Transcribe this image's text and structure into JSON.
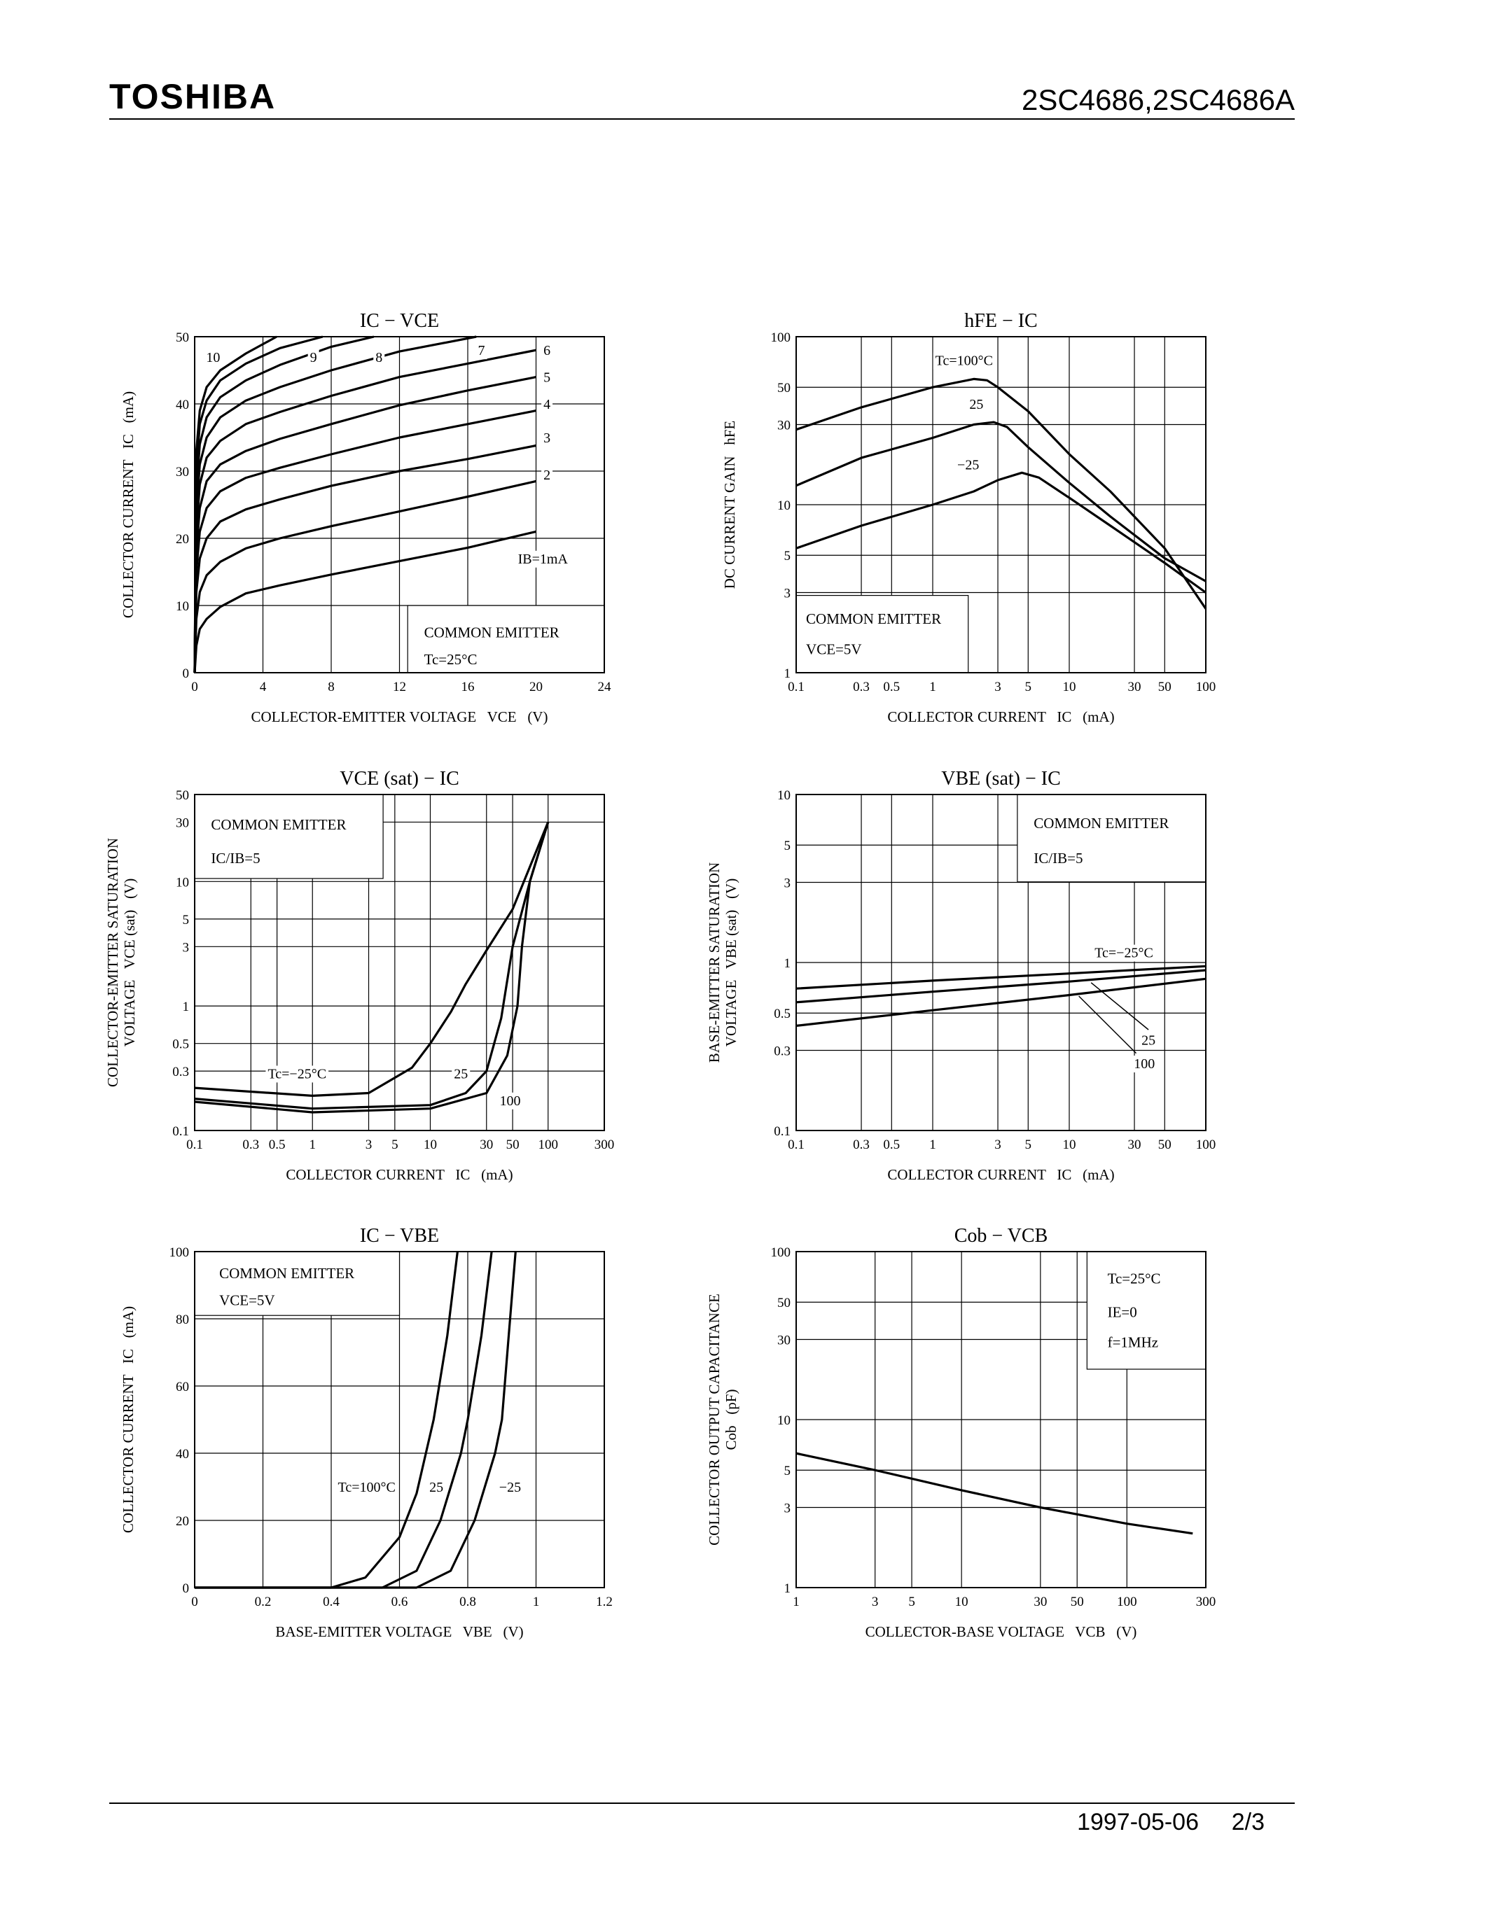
{
  "header": {
    "brand": "TOSHIBA",
    "part_number": "2SC4686,2SC4686A"
  },
  "chart_data": [
    {
      "type": "line",
      "title": "IC − VCE",
      "x_label": "COLLECTOR-EMITTER VOLTAGE   VCE   (V)",
      "y_label": "COLLECTOR CURRENT   IC   (mA)",
      "xscale": "linear",
      "yscale": "linear",
      "xlim": [
        0,
        24
      ],
      "xticks": [
        0,
        4,
        8,
        12,
        16,
        20,
        24
      ],
      "ylim": [
        0,
        50
      ],
      "yticks": [
        0,
        10,
        20,
        30,
        40,
        50
      ],
      "grid": true,
      "color": "#000000",
      "annotations": [
        "COMMON EMITTER",
        "Tc=25°C"
      ],
      "series": [
        {
          "name": "10",
          "x": [
            0,
            0.1,
            0.3,
            0.7,
            1.5,
            3,
            4.8
          ],
          "values": [
            0,
            33,
            39,
            42.5,
            45,
            47.5,
            50
          ]
        },
        {
          "name": "9",
          "x": [
            0,
            0.1,
            0.3,
            0.7,
            1.5,
            3,
            5,
            7.5
          ],
          "values": [
            0,
            30,
            37,
            40.5,
            43.5,
            46,
            48.3,
            50
          ]
        },
        {
          "name": "8",
          "x": [
            0,
            0.1,
            0.3,
            0.7,
            1.5,
            3,
            5,
            8,
            10.5
          ],
          "values": [
            0,
            27,
            34,
            38,
            41,
            43.5,
            45.8,
            48.5,
            50
          ]
        },
        {
          "name": "7",
          "x": [
            0,
            0.1,
            0.3,
            0.7,
            1.5,
            3,
            5,
            8,
            12,
            16.5
          ],
          "values": [
            0,
            24,
            31,
            35,
            38,
            40.5,
            42.5,
            45,
            47.8,
            50
          ]
        },
        {
          "name": "6",
          "x": [
            0,
            0.1,
            0.3,
            0.7,
            1.5,
            3,
            5,
            8,
            12,
            16,
            20
          ],
          "values": [
            0,
            21,
            28,
            32,
            34.5,
            37,
            38.8,
            41.2,
            44,
            46,
            48
          ]
        },
        {
          "name": "5",
          "x": [
            0,
            0.1,
            0.3,
            0.7,
            1.5,
            3,
            5,
            8,
            12,
            16,
            20
          ],
          "values": [
            0,
            18,
            24.5,
            28.5,
            31,
            33,
            34.8,
            37,
            39.8,
            42,
            44
          ]
        },
        {
          "name": "4",
          "x": [
            0,
            0.1,
            0.3,
            0.7,
            1.5,
            3,
            5,
            8,
            12,
            16,
            20
          ],
          "values": [
            0,
            15,
            21,
            24.5,
            27,
            29,
            30.5,
            32.5,
            35,
            37,
            39
          ]
        },
        {
          "name": "3",
          "x": [
            0,
            0.1,
            0.3,
            0.7,
            1.5,
            3,
            5,
            8,
            12,
            16,
            20
          ],
          "values": [
            0,
            12,
            17,
            20,
            22.5,
            24.3,
            25.8,
            27.8,
            30,
            31.8,
            33.8
          ]
        },
        {
          "name": "2",
          "x": [
            0,
            0.1,
            0.3,
            0.7,
            1.5,
            3,
            5,
            8,
            12,
            16,
            20
          ],
          "values": [
            0,
            8,
            12,
            14.5,
            16.5,
            18.5,
            20,
            21.8,
            24,
            26.2,
            28.5
          ]
        },
        {
          "name": "IB=1mA",
          "x": [
            0,
            0.1,
            0.3,
            0.7,
            1.5,
            3,
            5,
            8,
            12,
            16,
            20
          ],
          "values": [
            0,
            4,
            6.5,
            8,
            9.8,
            11.8,
            13,
            14.6,
            16.6,
            18.6,
            21
          ]
        }
      ]
    },
    {
      "type": "line",
      "title": "hFE − IC",
      "x_label": "COLLECTOR CURRENT   IC   (mA)",
      "y_label": "DC CURRENT GAIN   hFE",
      "xscale": "log",
      "yscale": "log",
      "xlim": [
        0.1,
        100
      ],
      "xticks": [
        0.1,
        0.3,
        0.5,
        1,
        3,
        5,
        10,
        30,
        50,
        100
      ],
      "ylim": [
        1,
        100
      ],
      "yticks": [
        1,
        3,
        5,
        10,
        30,
        50,
        100
      ],
      "grid": true,
      "color": "#000000",
      "annotations": [
        "COMMON EMITTER",
        "VCE=5V"
      ],
      "series": [
        {
          "name": "Tc=100°C",
          "x": [
            0.1,
            0.3,
            1,
            2,
            2.5,
            3,
            5,
            10,
            20,
            50,
            100
          ],
          "values": [
            28,
            38,
            50,
            56,
            55,
            50,
            36,
            20,
            12,
            5.5,
            2.4
          ]
        },
        {
          "name": "25",
          "x": [
            0.1,
            0.3,
            1,
            2,
            2.8,
            3.5,
            5,
            10,
            20,
            50,
            100
          ],
          "values": [
            13,
            19,
            25,
            30,
            31,
            29,
            22,
            13.5,
            8.5,
            4.8,
            3.5
          ]
        },
        {
          "name": "−25",
          "x": [
            0.1,
            0.3,
            1,
            2,
            3,
            4.5,
            6,
            10,
            20,
            50,
            100
          ],
          "values": [
            5.5,
            7.5,
            10,
            12,
            14,
            15.5,
            14.5,
            11,
            7.5,
            4.5,
            3
          ]
        }
      ]
    },
    {
      "type": "line",
      "title": "VCE (sat) − IC",
      "x_label": "COLLECTOR CURRENT   IC   (mA)",
      "y_label": [
        "COLLECTOR-EMITTER SATURATION",
        "VOLTAGE   VCE (sat)   (V)"
      ],
      "xscale": "log",
      "yscale": "log",
      "xlim": [
        0.1,
        300
      ],
      "xticks": [
        0.1,
        0.3,
        0.5,
        1,
        3,
        5,
        10,
        30,
        50,
        100,
        300
      ],
      "ylim": [
        0.1,
        50
      ],
      "yticks": [
        0.1,
        0.3,
        0.5,
        1,
        3,
        5,
        10,
        30,
        50
      ],
      "grid": true,
      "color": "#000000",
      "annotations": [
        "COMMON EMITTER",
        "IC/IB=5"
      ],
      "series": [
        {
          "name": "Tc=−25°C",
          "x": [
            0.1,
            1,
            3,
            7,
            10,
            15,
            20,
            30,
            50,
            100
          ],
          "values": [
            0.22,
            0.19,
            0.2,
            0.32,
            0.5,
            0.9,
            1.5,
            2.8,
            6,
            30
          ]
        },
        {
          "name": "25",
          "x": [
            0.1,
            1,
            10,
            20,
            30,
            40,
            50,
            70,
            100
          ],
          "values": [
            0.18,
            0.15,
            0.16,
            0.2,
            0.3,
            0.8,
            3,
            10,
            30
          ]
        },
        {
          "name": "100",
          "x": [
            0.1,
            1,
            10,
            30,
            45,
            55,
            60,
            70,
            100
          ],
          "values": [
            0.17,
            0.14,
            0.15,
            0.2,
            0.4,
            1,
            3,
            10,
            30
          ]
        }
      ]
    },
    {
      "type": "line",
      "title": "VBE (sat) − IC",
      "x_label": "COLLECTOR CURRENT   IC   (mA)",
      "y_label": [
        "BASE-EMITTER SATURATION",
        "VOLTAGE   VBE (sat)   (V)"
      ],
      "xscale": "log",
      "yscale": "log",
      "xlim": [
        0.1,
        100
      ],
      "xticks": [
        0.1,
        0.3,
        0.5,
        1,
        3,
        5,
        10,
        30,
        50,
        100
      ],
      "ylim": [
        0.1,
        10
      ],
      "yticks": [
        0.1,
        0.3,
        0.5,
        1,
        3,
        5,
        10
      ],
      "grid": true,
      "color": "#000000",
      "annotations": [
        "COMMON EMITTER",
        "IC/IB=5"
      ],
      "series": [
        {
          "name": "Tc=−25°C",
          "x": [
            0.1,
            1,
            10,
            100
          ],
          "values": [
            0.7,
            0.78,
            0.86,
            0.95
          ]
        },
        {
          "name": "25",
          "x": [
            0.1,
            1,
            10,
            100
          ],
          "values": [
            0.58,
            0.67,
            0.77,
            0.9
          ]
        },
        {
          "name": "100",
          "x": [
            0.1,
            1,
            10,
            100
          ],
          "values": [
            0.42,
            0.52,
            0.64,
            0.8
          ]
        }
      ]
    },
    {
      "type": "line",
      "title": "IC − VBE",
      "x_label": "BASE-EMITTER VOLTAGE   VBE   (V)",
      "y_label": "COLLECTOR CURRENT   IC   (mA)",
      "xscale": "linear",
      "yscale": "linear",
      "xlim": [
        0,
        1.2
      ],
      "xticks": [
        0,
        0.2,
        0.4,
        0.6,
        0.8,
        1.0,
        1.2
      ],
      "ylim": [
        0,
        100
      ],
      "yticks": [
        0,
        20,
        40,
        60,
        80,
        100
      ],
      "grid": true,
      "color": "#000000",
      "annotations": [
        "COMMON EMITTER",
        "VCE=5V"
      ],
      "series": [
        {
          "name": "Tc=100°C",
          "x": [
            0,
            0.4,
            0.5,
            0.6,
            0.65,
            0.7,
            0.74,
            0.77
          ],
          "values": [
            0,
            0,
            3,
            15,
            28,
            50,
            75,
            100
          ]
        },
        {
          "name": "25",
          "x": [
            0,
            0.55,
            0.65,
            0.72,
            0.78,
            0.8,
            0.84,
            0.87
          ],
          "values": [
            0,
            0,
            5,
            20,
            40,
            50,
            75,
            100
          ]
        },
        {
          "name": "−25",
          "x": [
            0,
            0.65,
            0.75,
            0.82,
            0.88,
            0.9,
            0.92,
            0.94
          ],
          "values": [
            0,
            0,
            5,
            20,
            40,
            50,
            75,
            100
          ]
        }
      ]
    },
    {
      "type": "line",
      "title": "Cob − VCB",
      "x_label": "COLLECTOR-BASE VOLTAGE   VCB   (V)",
      "y_label": [
        "COLLECTOR OUTPUT CAPACITANCE",
        "Cob   (pF)"
      ],
      "xscale": "log",
      "yscale": "log",
      "xlim": [
        1,
        300
      ],
      "xticks": [
        1,
        3,
        5,
        10,
        30,
        50,
        100,
        300
      ],
      "ylim": [
        1,
        100
      ],
      "yticks": [
        1,
        3,
        5,
        10,
        30,
        50,
        100
      ],
      "grid": true,
      "color": "#000000",
      "annotations": [
        "Tc=25°C",
        "IE=0",
        "f=1MHz"
      ],
      "series": [
        {
          "x": [
            1,
            3,
            10,
            30,
            100,
            250
          ],
          "values": [
            6.3,
            5,
            3.8,
            3,
            2.4,
            2.1
          ]
        }
      ]
    }
  ],
  "footer": {
    "date": "1997-05-06",
    "page": "2/3"
  }
}
